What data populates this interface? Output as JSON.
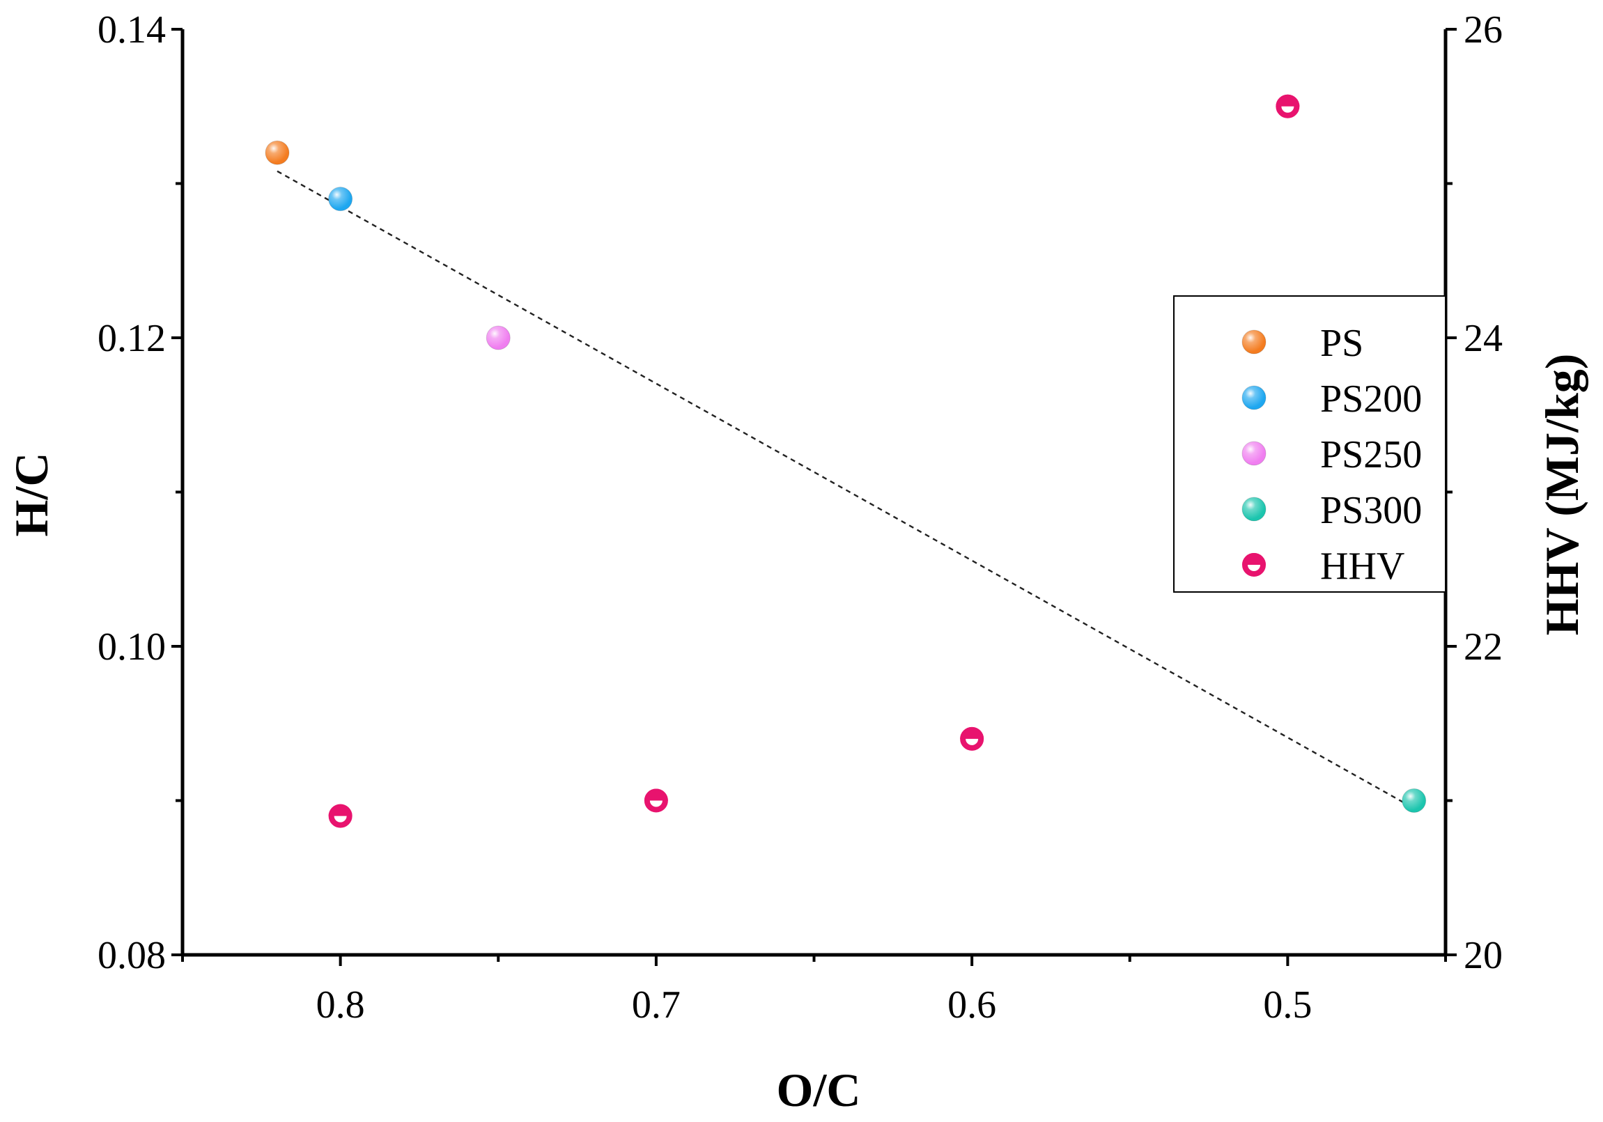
{
  "chart_data": {
    "type": "scatter",
    "xlabel": "O/C",
    "ylabel": "H/C",
    "y2label": "HHV (MJ/kg)",
    "xlim": [
      0.85,
      0.45
    ],
    "ylim": [
      0.08,
      0.14
    ],
    "y2lim": [
      20,
      26
    ],
    "x_ticks": [
      0.8,
      0.7,
      0.6,
      0.5
    ],
    "x_tick_labels": [
      "0.8",
      "0.7",
      "0.6",
      "0.5"
    ],
    "x_minor_ticks": [
      0.85,
      0.75,
      0.65,
      0.55,
      0.45
    ],
    "y_ticks": [
      0.08,
      0.1,
      0.12,
      0.14
    ],
    "y_tick_labels": [
      "0.08",
      "0.10",
      "0.12",
      "0.14"
    ],
    "y_minor_ticks": [
      0.09,
      0.11,
      0.13
    ],
    "y2_ticks": [
      20,
      22,
      24,
      26
    ],
    "y2_tick_labels": [
      "20",
      "22",
      "24",
      "26"
    ],
    "y2_minor_ticks": [
      21,
      23,
      25
    ],
    "series": [
      {
        "name": "PS",
        "color": "#f47c20",
        "axis": "left",
        "points": [
          {
            "x": 0.82,
            "y": 0.132
          }
        ]
      },
      {
        "name": "PS200",
        "color": "#1ea7f0",
        "axis": "left",
        "points": [
          {
            "x": 0.8,
            "y": 0.129
          }
        ]
      },
      {
        "name": "PS250",
        "color": "#f07ef0",
        "axis": "left",
        "points": [
          {
            "x": 0.75,
            "y": 0.12
          }
        ]
      },
      {
        "name": "PS300",
        "color": "#1cc5ae",
        "axis": "left",
        "points": [
          {
            "x": 0.46,
            "y": 0.09
          }
        ]
      },
      {
        "name": "HHV",
        "color": "#e8136e",
        "axis": "right",
        "marker": "half-filled",
        "points": [
          {
            "x": 0.8,
            "y": 20.9
          },
          {
            "x": 0.7,
            "y": 21.0
          },
          {
            "x": 0.6,
            "y": 21.4
          },
          {
            "x": 0.5,
            "y": 25.5
          }
        ]
      }
    ],
    "trendline": {
      "style": "dashed",
      "axis": "left",
      "from": {
        "x": 0.82,
        "y": 0.1308
      },
      "to": {
        "x": 0.46,
        "y": 0.0895
      }
    },
    "legend_position": "right"
  }
}
